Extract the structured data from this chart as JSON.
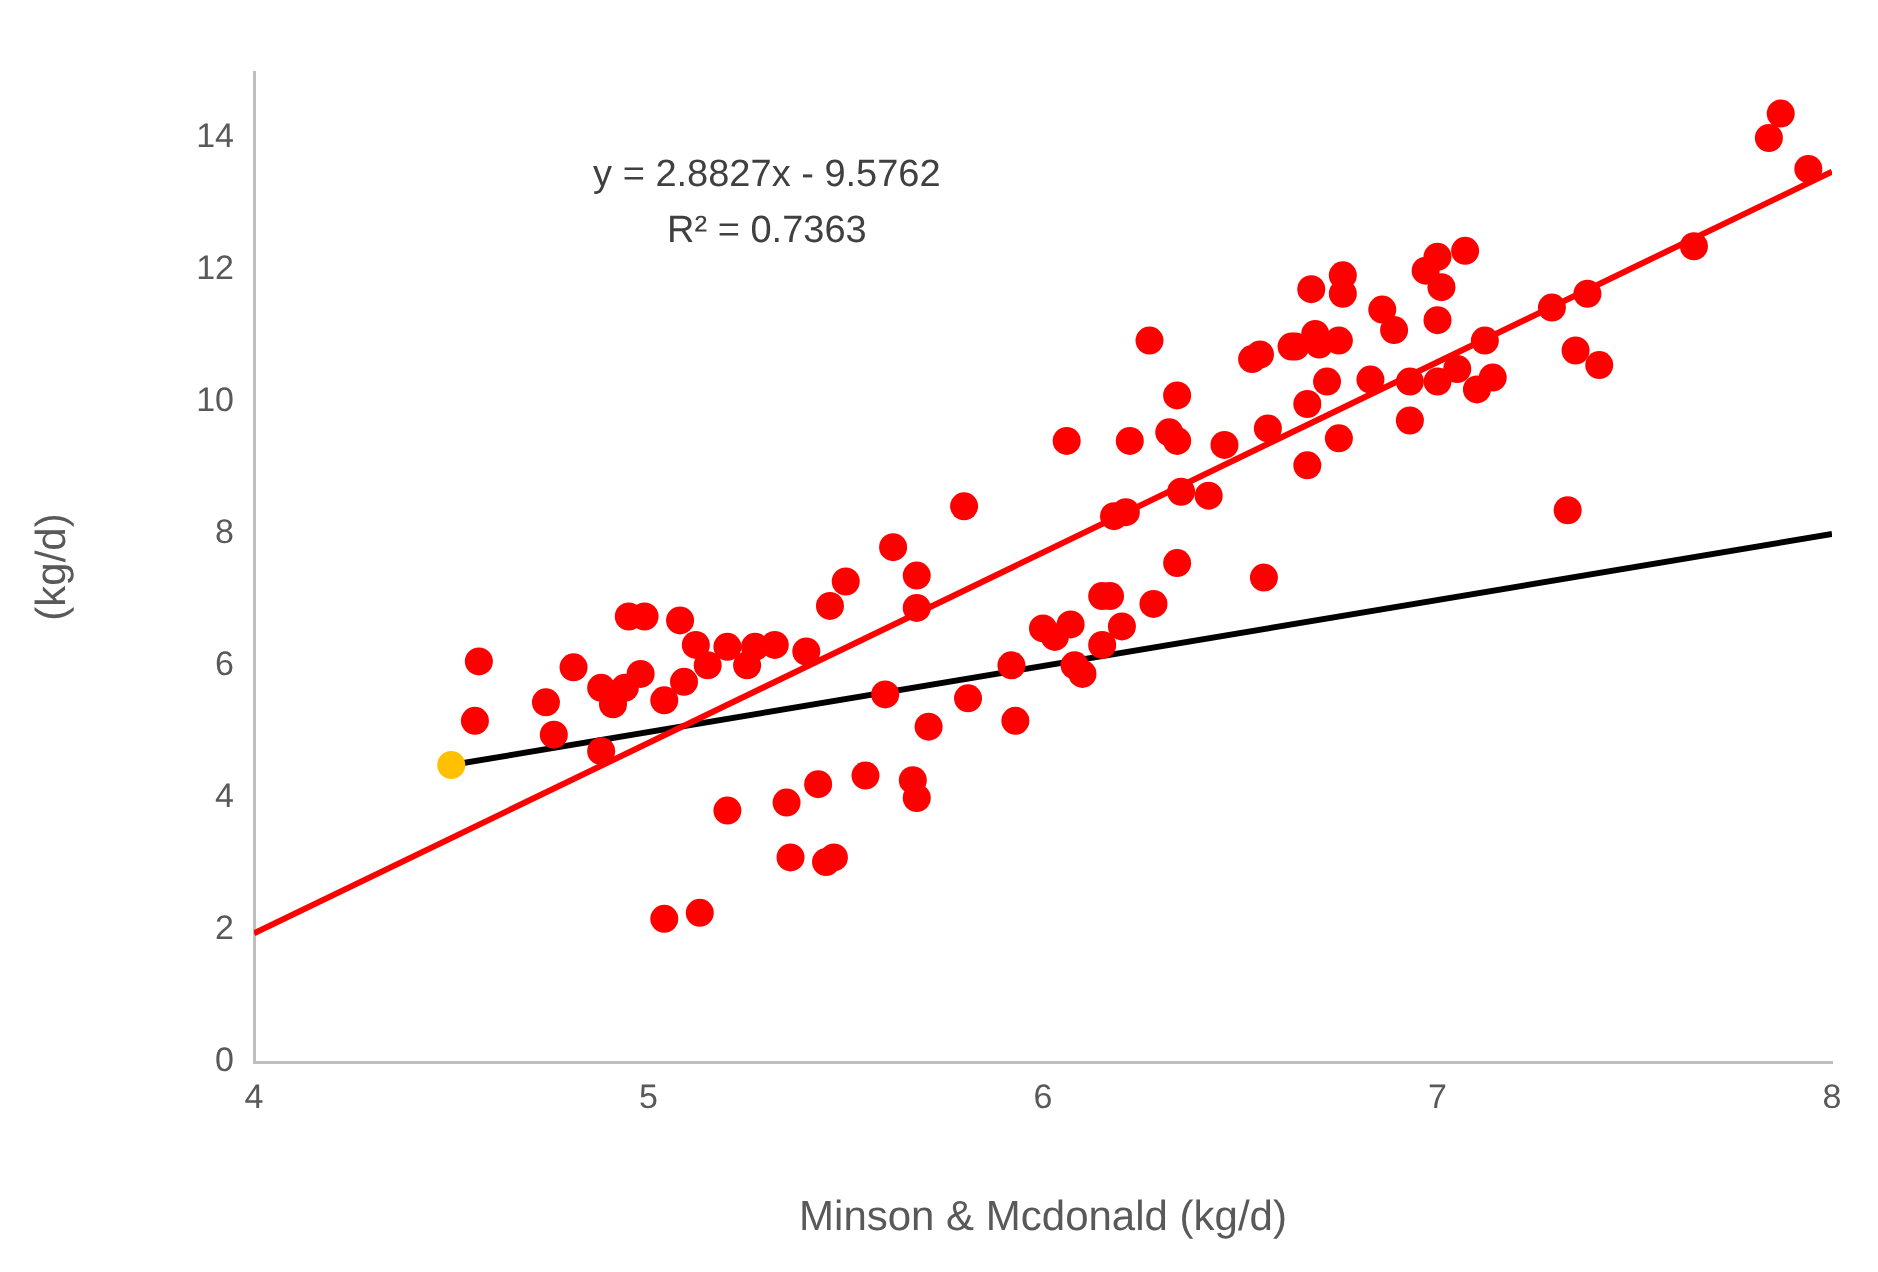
{
  "chart_data": {
    "type": "scatter",
    "xlabel": "Minson & Mcdonald (kg/d)",
    "ylabel": "(kg/d)",
    "annotations": [
      "y = 2.8827x - 9.5762",
      "R² = 0.7363"
    ],
    "xlim": [
      4,
      8
    ],
    "xticks": [
      4,
      5,
      6,
      7,
      8
    ],
    "ylim": [
      0,
      15
    ],
    "yticks": [
      0,
      2,
      4,
      6,
      8,
      10,
      12,
      14
    ],
    "grid": false,
    "marker": "circle",
    "series": [
      {
        "type": "scatter",
        "color": "#ff0000",
        "x": [
          4.57,
          4.56,
          4.74,
          4.76,
          4.81,
          4.88,
          4.88,
          4.91,
          4.94,
          4.98,
          4.95,
          4.99,
          5.08,
          5.12,
          5.15,
          5.09,
          5.04,
          5.2,
          5.25,
          5.27,
          5.32,
          5.4,
          5.46,
          5.5,
          5.62,
          5.68,
          5.68,
          5.6,
          5.71,
          5.2,
          5.35,
          5.43,
          5.55,
          5.67,
          5.68,
          5.36,
          5.45,
          5.47,
          5.04,
          5.13,
          5.8,
          5.81,
          5.93,
          5.92,
          6.0,
          6.07,
          6.03,
          6.08,
          6.1,
          6.15,
          6.17,
          6.2,
          6.15,
          6.28,
          6.34,
          6.56,
          6.18,
          6.21,
          6.35,
          6.42,
          6.27,
          6.06,
          6.22,
          6.34,
          6.32,
          6.34,
          6.46,
          6.57,
          6.53,
          6.55,
          6.63,
          6.69,
          6.7,
          6.75,
          6.72,
          6.67,
          6.67,
          6.75,
          6.83,
          6.93,
          6.93,
          7.0,
          7.05,
          7.1,
          6.86,
          6.89,
          7.0,
          7.65,
          7.38,
          7.29,
          7.35,
          7.41,
          7.33,
          7.12,
          7.14,
          7.07,
          7.0,
          6.97,
          7.01,
          6.76,
          6.76,
          6.68,
          6.64,
          7.84,
          7.87,
          7.94
        ],
        "values": [
          6.07,
          5.17,
          5.45,
          4.96,
          5.98,
          5.67,
          4.71,
          5.42,
          5.67,
          5.88,
          6.75,
          6.75,
          6.69,
          6.32,
          6.01,
          5.76,
          5.48,
          6.29,
          6.01,
          6.29,
          6.32,
          6.22,
          6.91,
          7.28,
          7.8,
          7.37,
          6.88,
          5.57,
          5.08,
          3.81,
          3.93,
          4.21,
          4.34,
          4.27,
          4.0,
          3.1,
          3.03,
          3.1,
          2.17,
          2.26,
          8.42,
          5.51,
          5.17,
          6.01,
          6.57,
          6.63,
          6.44,
          6.01,
          5.88,
          7.06,
          7.06,
          6.6,
          6.32,
          6.94,
          7.56,
          7.34,
          8.27,
          8.33,
          8.64,
          8.58,
          10.93,
          9.41,
          9.41,
          10.1,
          9.54,
          9.41,
          9.35,
          9.6,
          10.65,
          10.72,
          10.84,
          11.03,
          10.87,
          10.93,
          10.31,
          9.97,
          9.04,
          9.45,
          10.34,
          10.31,
          9.72,
          10.31,
          10.5,
          10.19,
          11.4,
          11.09,
          11.24,
          12.36,
          11.64,
          11.43,
          10.78,
          10.56,
          8.36,
          10.93,
          10.37,
          12.29,
          12.2,
          11.99,
          11.74,
          11.92,
          11.64,
          11.71,
          10.84,
          14.0,
          14.37,
          13.53
        ]
      },
      {
        "type": "line",
        "color": "#ff0000",
        "marker": "none",
        "x": [
          4,
          8
        ],
        "values": [
          1.95,
          13.49
        ]
      },
      {
        "type": "line",
        "color": "#000000",
        "marker": "none",
        "x": [
          4.5,
          8
        ],
        "values": [
          4.5,
          8
        ]
      },
      {
        "type": "scatter",
        "color": "#ffc000",
        "x": [
          4.5
        ],
        "values": [
          4.5
        ]
      }
    ]
  }
}
